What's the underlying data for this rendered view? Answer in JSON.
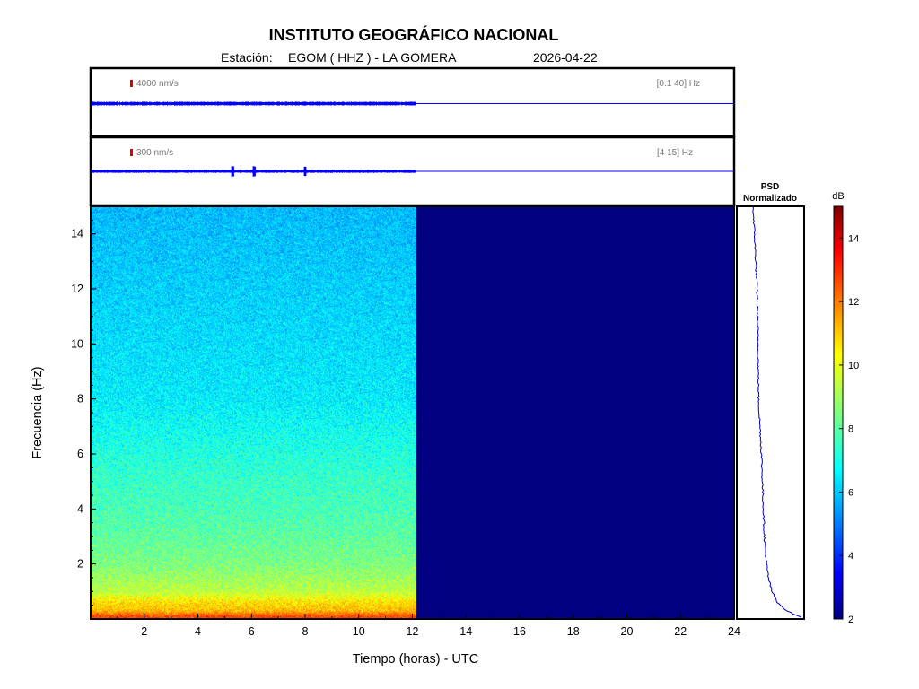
{
  "header": {
    "institution": "INSTITUTO GEOGRÁFICO NACIONAL",
    "station_prefix": "Estación:",
    "station": "EGOM ( HHZ ) - LA GOMERA",
    "date": "2026-04-22"
  },
  "traces": [
    {
      "scale_label": "4000 nm/s",
      "band_label": "[0.1 40] Hz",
      "end_hour": 12.15,
      "color": "#0000ff"
    },
    {
      "scale_label": "300 nm/s",
      "band_label": "[4 15] Hz",
      "end_hour": 12.15,
      "color": "#0000ff"
    }
  ],
  "psd_panel": {
    "title_line1": "PSD",
    "title_line2": "Normalizado"
  },
  "colorbar": {
    "unit": "dB",
    "ticks": [
      2,
      4,
      6,
      8,
      10,
      12,
      14
    ],
    "range": [
      2,
      15
    ],
    "colormap": "jet"
  },
  "chart_data": {
    "type": "heatmap",
    "xlabel": "Tiempo (horas) - UTC",
    "ylabel": "Frecuencia  (Hz)",
    "xlim": [
      0,
      24
    ],
    "ylim": [
      0,
      15
    ],
    "xticks": [
      2,
      4,
      6,
      8,
      10,
      12,
      14,
      16,
      18,
      20,
      22,
      24
    ],
    "yticks": [
      2,
      4,
      6,
      8,
      10,
      12,
      14
    ],
    "data_end_hour": 12.15,
    "empty_value_db": 2,
    "spectral_profile_db": [
      {
        "freq_hz": 0.1,
        "db": 12.5
      },
      {
        "freq_hz": 0.3,
        "db": 11.0
      },
      {
        "freq_hz": 0.6,
        "db": 10.5
      },
      {
        "freq_hz": 1.0,
        "db": 9.3
      },
      {
        "freq_hz": 2.0,
        "db": 8.5
      },
      {
        "freq_hz": 3.0,
        "db": 8.1
      },
      {
        "freq_hz": 4.0,
        "db": 7.8
      },
      {
        "freq_hz": 5.0,
        "db": 7.6
      },
      {
        "freq_hz": 6.0,
        "db": 7.3
      },
      {
        "freq_hz": 7.0,
        "db": 7.0
      },
      {
        "freq_hz": 8.0,
        "db": 6.7
      },
      {
        "freq_hz": 10.0,
        "db": 6.5
      },
      {
        "freq_hz": 12.0,
        "db": 6.3
      },
      {
        "freq_hz": 14.0,
        "db": 6.1
      },
      {
        "freq_hz": 15.0,
        "db": 6.0
      }
    ],
    "psd_normalized": [
      {
        "freq_hz": 0.05,
        "value": 1.0
      },
      {
        "freq_hz": 0.3,
        "value": 0.7
      },
      {
        "freq_hz": 0.6,
        "value": 0.52
      },
      {
        "freq_hz": 1.0,
        "value": 0.4
      },
      {
        "freq_hz": 1.5,
        "value": 0.33
      },
      {
        "freq_hz": 2.0,
        "value": 0.29
      },
      {
        "freq_hz": 3.0,
        "value": 0.25
      },
      {
        "freq_hz": 4.0,
        "value": 0.23
      },
      {
        "freq_hz": 5.0,
        "value": 0.21
      },
      {
        "freq_hz": 6.0,
        "value": 0.19
      },
      {
        "freq_hz": 7.0,
        "value": 0.16
      },
      {
        "freq_hz": 8.0,
        "value": 0.13
      },
      {
        "freq_hz": 10.0,
        "value": 0.12
      },
      {
        "freq_hz": 12.0,
        "value": 0.1
      },
      {
        "freq_hz": 14.0,
        "value": 0.05
      },
      {
        "freq_hz": 15.0,
        "value": 0.02
      }
    ]
  }
}
